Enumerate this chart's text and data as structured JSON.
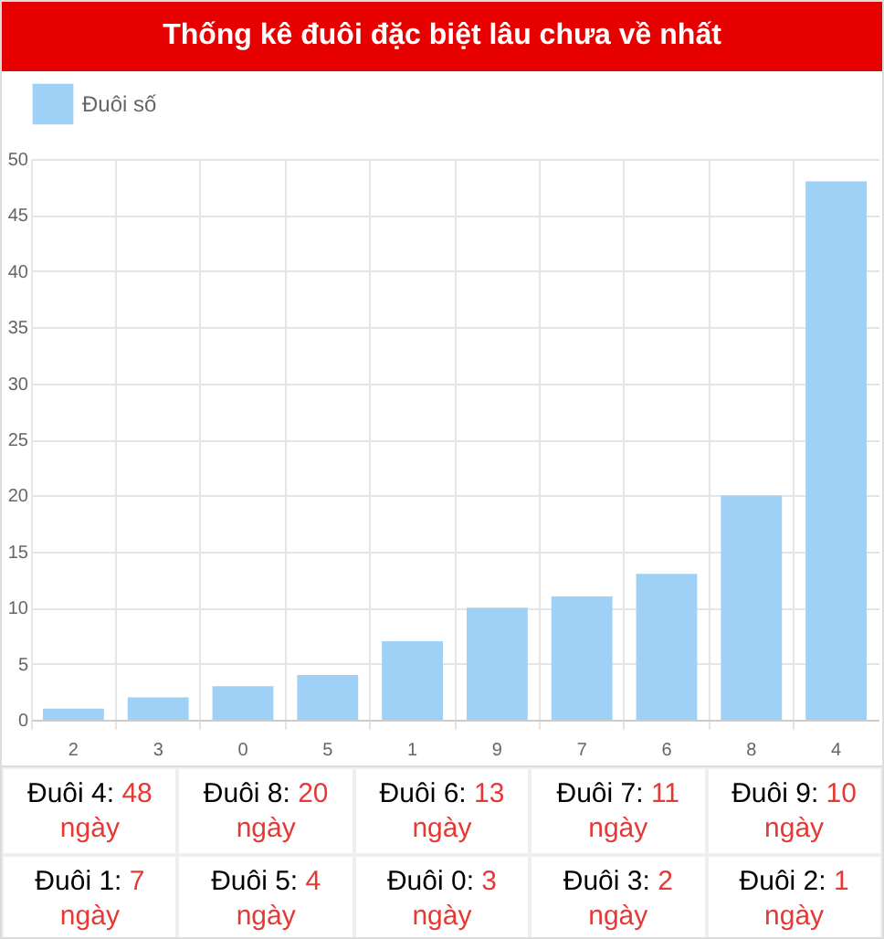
{
  "chart_data": {
    "type": "bar",
    "title": "Thống kê đuôi đặc biệt lâu chưa về nhất",
    "categories": [
      "2",
      "3",
      "0",
      "5",
      "1",
      "9",
      "7",
      "6",
      "8",
      "4"
    ],
    "series": [
      {
        "name": "Đuôi số",
        "color": "#9fd0f5",
        "values": [
          1,
          2,
          3,
          4,
          7,
          10,
          11,
          13,
          20,
          48
        ]
      }
    ],
    "ylim": [
      0,
      50
    ],
    "yticks": [
      0,
      5,
      10,
      15,
      20,
      25,
      30,
      35,
      40,
      45,
      50
    ],
    "grid": true,
    "legend": "top",
    "annotations": [
      "Đuôi 4: 48 ngày",
      "Đuôi 8: 20 ngày",
      "Đuôi 6: 13 ngày",
      "Đuôi 7: 11 ngày",
      "Đuôi 9: 10 ngày",
      "Đuôi 1: 7 ngày",
      "Đuôi 5: 4 ngày",
      "Đuôi 0: 3 ngày",
      "Đuôi 3: 2 ngày",
      "Đuôi 2: 1 ngày"
    ]
  }
}
